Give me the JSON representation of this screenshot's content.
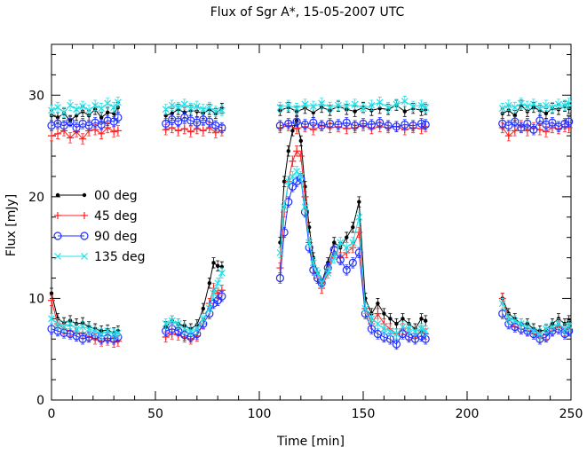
{
  "chart_data": {
    "type": "line",
    "title": "Flux of Sgr A*, 15-05-2007 UTC",
    "xlabel": "Time [min]",
    "ylabel": "Flux [mJy]",
    "xlim": [
      0,
      250
    ],
    "ylim": [
      0,
      35
    ],
    "xticks": [
      0,
      50,
      100,
      150,
      200,
      250
    ],
    "yticks": [
      0,
      10,
      20,
      30
    ],
    "grid": false,
    "legend_position": "left",
    "series": [
      {
        "name": "00 deg",
        "color": "#000000",
        "marker": "dot",
        "x": [
          0,
          3,
          6,
          9,
          12,
          15,
          18,
          21,
          24,
          27,
          30,
          32,
          55,
          58,
          61,
          64,
          67,
          70,
          73,
          76,
          78,
          80,
          82,
          110,
          112,
          114,
          116,
          118,
          120,
          122,
          124,
          126,
          128,
          130,
          133,
          136,
          139,
          142,
          145,
          148,
          151,
          154,
          157,
          160,
          163,
          166,
          169,
          172,
          175,
          178,
          180,
          217,
          220,
          223,
          226,
          229,
          232,
          235,
          238,
          241,
          244,
          247,
          249
        ],
        "y": [
          10.5,
          8.0,
          7.6,
          7.8,
          7.5,
          7.6,
          7.2,
          7.0,
          6.8,
          6.9,
          6.6,
          6.8,
          7.2,
          7.8,
          7.5,
          7.3,
          7.0,
          7.4,
          9.0,
          11.5,
          13.5,
          13.2,
          13.1,
          15.5,
          21.5,
          24.5,
          26.5,
          27.5,
          25.5,
          21.0,
          17.0,
          14.0,
          12.5,
          11.5,
          13.5,
          15.5,
          15.0,
          16.0,
          17.0,
          19.5,
          10.0,
          8.5,
          9.5,
          8.5,
          8.0,
          7.5,
          8.0,
          7.5,
          7.0,
          8.0,
          7.8,
          10.0,
          8.5,
          8.0,
          7.5,
          7.5,
          7.0,
          6.8,
          6.9,
          7.5,
          8.0,
          7.5,
          7.8
        ],
        "x2": [
          0,
          3,
          6,
          9,
          12,
          15,
          18,
          21,
          24,
          27,
          30,
          32,
          55,
          58,
          61,
          64,
          67,
          70,
          73,
          76,
          79,
          82,
          110,
          114,
          118,
          122,
          126,
          130,
          134,
          138,
          142,
          146,
          150,
          154,
          158,
          162,
          166,
          170,
          174,
          178,
          180,
          217,
          220,
          223,
          226,
          229,
          232,
          235,
          238,
          241,
          244,
          247,
          249
        ],
        "y2": [
          28.0,
          27.8,
          28.2,
          27.5,
          28.0,
          28.4,
          28.0,
          28.6,
          27.8,
          28.3,
          28.2,
          28.8,
          28.0,
          28.2,
          28.6,
          28.3,
          28.5,
          28.4,
          28.2,
          28.6,
          28.2,
          28.7,
          28.5,
          28.8,
          28.4,
          28.7,
          28.3,
          28.8,
          28.5,
          28.9,
          28.6,
          28.4,
          28.8,
          28.5,
          28.7,
          28.6,
          29.0,
          28.4,
          28.7,
          28.5,
          28.6,
          28.2,
          28.5,
          28.0,
          29.0,
          28.4,
          28.8,
          28.5,
          28.2,
          28.7,
          28.6,
          28.9,
          28.7
        ]
      },
      {
        "name": "45 deg",
        "color": "#ff2020",
        "marker": "plus",
        "x": [
          0,
          3,
          6,
          9,
          12,
          15,
          18,
          21,
          24,
          27,
          30,
          32,
          55,
          58,
          61,
          64,
          67,
          70,
          73,
          76,
          78,
          80,
          82,
          110,
          112,
          114,
          116,
          118,
          120,
          122,
          124,
          126,
          128,
          130,
          133,
          136,
          139,
          142,
          145,
          148,
          151,
          154,
          157,
          160,
          163,
          166,
          169,
          172,
          175,
          178,
          180,
          217,
          220,
          223,
          226,
          229,
          232,
          235,
          238,
          241,
          244,
          247,
          249
        ],
        "y": [
          9.8,
          7.5,
          7.0,
          6.8,
          6.5,
          6.6,
          6.2,
          6.0,
          5.8,
          5.9,
          5.7,
          5.8,
          6.2,
          6.5,
          6.4,
          6.2,
          6.0,
          6.3,
          7.5,
          9.5,
          11.0,
          10.5,
          10.8,
          13.0,
          18.5,
          21.5,
          23.5,
          24.5,
          24.0,
          20.0,
          15.5,
          13.0,
          12.0,
          11.0,
          12.5,
          14.5,
          14.0,
          14.5,
          15.0,
          16.5,
          9.0,
          7.5,
          8.5,
          7.5,
          7.0,
          6.5,
          7.0,
          6.5,
          6.2,
          6.8,
          6.5,
          10.0,
          8.0,
          7.2,
          7.0,
          6.8,
          6.5,
          6.2,
          6.5,
          6.8,
          7.2,
          6.8,
          7.0
        ],
        "x2": [
          0,
          3,
          6,
          9,
          12,
          15,
          18,
          21,
          24,
          27,
          30,
          32,
          55,
          58,
          61,
          64,
          67,
          70,
          73,
          76,
          79,
          82,
          110,
          114,
          118,
          122,
          126,
          130,
          134,
          138,
          142,
          146,
          150,
          154,
          158,
          162,
          166,
          170,
          174,
          178,
          180,
          217,
          220,
          223,
          226,
          229,
          232,
          235,
          238,
          241,
          244,
          247,
          249
        ],
        "y2": [
          26.0,
          26.2,
          26.5,
          25.8,
          26.4,
          25.7,
          26.5,
          26.6,
          26.2,
          26.8,
          26.4,
          26.5,
          26.6,
          26.8,
          26.5,
          26.7,
          26.4,
          26.7,
          26.5,
          26.8,
          26.3,
          26.5,
          26.8,
          27.0,
          26.7,
          26.9,
          26.6,
          27.0,
          26.8,
          26.9,
          26.7,
          26.8,
          27.0,
          26.7,
          26.9,
          26.8,
          26.9,
          26.6,
          26.8,
          26.7,
          26.9,
          26.8,
          26.0,
          26.5,
          27.0,
          26.5,
          26.8,
          26.6,
          26.4,
          26.8,
          26.7,
          26.9,
          26.8
        ]
      },
      {
        "name": "90 deg",
        "color": "#2030ff",
        "marker": "circle",
        "x": [
          0,
          3,
          6,
          9,
          12,
          15,
          18,
          21,
          24,
          27,
          30,
          32,
          55,
          58,
          61,
          64,
          67,
          70,
          73,
          76,
          78,
          80,
          82,
          110,
          112,
          114,
          116,
          118,
          120,
          122,
          124,
          126,
          128,
          130,
          133,
          136,
          139,
          142,
          145,
          148,
          151,
          154,
          157,
          160,
          163,
          166,
          169,
          172,
          175,
          178,
          180,
          217,
          220,
          223,
          226,
          229,
          232,
          235,
          238,
          241,
          244,
          247,
          249
        ],
        "y": [
          7.0,
          6.8,
          6.6,
          6.5,
          6.3,
          6.0,
          6.2,
          6.4,
          6.0,
          6.1,
          6.0,
          6.2,
          6.8,
          7.0,
          6.8,
          6.4,
          6.2,
          6.5,
          7.5,
          8.5,
          9.5,
          9.8,
          10.2,
          12.0,
          16.5,
          19.5,
          21.0,
          21.5,
          21.8,
          18.5,
          15.0,
          12.8,
          12.0,
          11.5,
          13.0,
          14.8,
          13.8,
          12.8,
          13.5,
          14.5,
          8.5,
          7.0,
          6.5,
          6.2,
          6.0,
          5.5,
          6.5,
          6.2,
          6.0,
          6.3,
          6.0,
          8.5,
          7.5,
          7.2,
          7.0,
          6.8,
          6.5,
          6.0,
          6.2,
          6.8,
          7.0,
          6.5,
          6.8
        ],
        "x2": [
          0,
          3,
          6,
          9,
          12,
          15,
          18,
          21,
          24,
          27,
          30,
          32,
          55,
          58,
          61,
          64,
          67,
          70,
          73,
          76,
          79,
          82,
          110,
          114,
          118,
          122,
          126,
          130,
          134,
          138,
          142,
          146,
          150,
          154,
          158,
          162,
          166,
          170,
          174,
          178,
          180,
          217,
          220,
          223,
          226,
          229,
          232,
          235,
          238,
          241,
          244,
          247,
          249
        ],
        "y2": [
          27.0,
          27.2,
          27.0,
          27.4,
          26.8,
          27.2,
          27.0,
          27.3,
          27.1,
          27.5,
          27.4,
          27.8,
          27.2,
          27.6,
          27.4,
          27.8,
          27.5,
          27.3,
          27.6,
          27.4,
          27.0,
          26.8,
          27.0,
          27.2,
          27.4,
          27.1,
          27.3,
          27.0,
          27.2,
          27.1,
          27.3,
          27.0,
          27.2,
          27.1,
          27.3,
          27.0,
          26.9,
          27.1,
          27.0,
          27.2,
          27.1,
          27.2,
          27.0,
          27.4,
          26.8,
          27.2,
          26.6,
          27.5,
          27.1,
          27.3,
          26.9,
          27.2,
          27.4
        ]
      },
      {
        "name": "135 deg",
        "color": "#20e0e8",
        "marker": "cross",
        "x": [
          0,
          3,
          6,
          9,
          12,
          15,
          18,
          21,
          24,
          27,
          30,
          32,
          55,
          58,
          61,
          64,
          67,
          70,
          73,
          76,
          78,
          80,
          82,
          110,
          112,
          114,
          116,
          118,
          120,
          122,
          124,
          126,
          128,
          130,
          133,
          136,
          139,
          142,
          145,
          148,
          151,
          154,
          157,
          160,
          163,
          166,
          169,
          172,
          175,
          178,
          180,
          217,
          220,
          223,
          226,
          229,
          232,
          235,
          238,
          241,
          244,
          247,
          249
        ],
        "y": [
          8.0,
          7.5,
          7.2,
          7.5,
          7.0,
          7.2,
          7.0,
          6.8,
          6.5,
          6.8,
          6.5,
          6.6,
          7.5,
          7.8,
          7.5,
          7.0,
          6.8,
          7.0,
          8.0,
          9.0,
          10.5,
          11.5,
          12.5,
          14.5,
          19.0,
          21.5,
          22.0,
          22.5,
          22.0,
          19.0,
          15.5,
          13.5,
          12.5,
          11.5,
          12.5,
          14.0,
          15.5,
          15.0,
          15.5,
          18.0,
          9.0,
          8.0,
          7.5,
          7.0,
          6.8,
          6.5,
          7.2,
          7.0,
          6.8,
          7.0,
          6.8,
          9.5,
          8.0,
          7.8,
          7.5,
          7.2,
          6.8,
          6.5,
          7.0,
          7.2,
          7.5,
          7.0,
          7.3
        ],
        "x2": [
          0,
          3,
          6,
          9,
          12,
          15,
          18,
          21,
          24,
          27,
          30,
          32,
          55,
          58,
          61,
          64,
          67,
          70,
          73,
          76,
          79,
          82,
          110,
          114,
          118,
          122,
          126,
          130,
          134,
          138,
          142,
          146,
          150,
          154,
          158,
          162,
          166,
          170,
          174,
          178,
          180,
          217,
          220,
          223,
          226,
          229,
          232,
          235,
          238,
          241,
          244,
          247,
          249
        ],
        "y2": [
          28.5,
          28.8,
          28.3,
          29.0,
          28.6,
          28.9,
          28.5,
          29.0,
          28.7,
          29.2,
          28.8,
          29.3,
          28.6,
          29.0,
          28.8,
          29.1,
          28.7,
          28.9,
          28.6,
          28.8,
          28.4,
          28.5,
          28.8,
          29.0,
          28.7,
          29.1,
          28.9,
          29.2,
          28.8,
          29.0,
          28.9,
          29.1,
          28.7,
          29.0,
          29.3,
          28.8,
          29.1,
          29.4,
          28.9,
          29.0,
          28.8,
          28.7,
          29.0,
          28.8,
          29.2,
          28.9,
          29.1,
          28.7,
          29.0,
          28.8,
          29.1,
          29.0,
          29.2
        ]
      }
    ]
  }
}
